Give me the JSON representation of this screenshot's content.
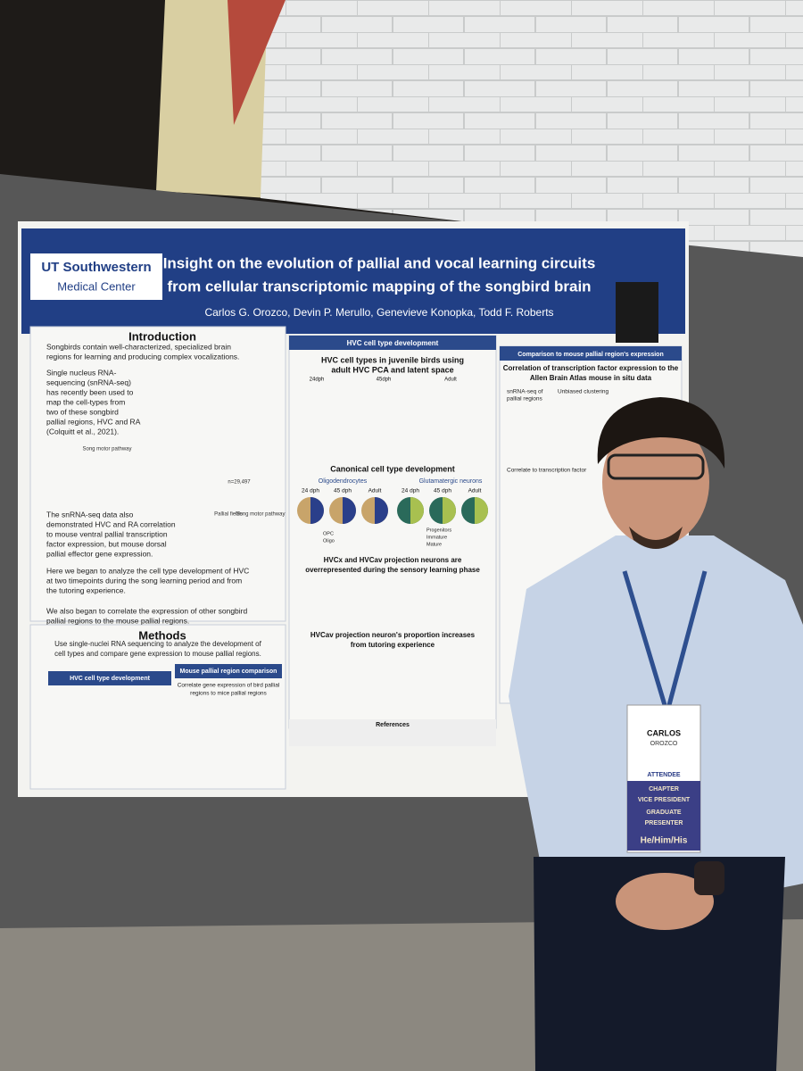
{
  "poster": {
    "logo": {
      "name": "UT Southwestern",
      "sub": "Medical Center"
    },
    "title_lines": [
      "Insight on the evolution of pallial and vocal learning circuits",
      "from cellular transcriptomic mapping of the songbird brain"
    ],
    "authors": "Carlos G. Orozco, Devin P. Merullo, Genevieve Konopka, Todd F. Roberts",
    "introduction": {
      "heading": "Introduction",
      "bullets": [
        [
          "Songbirds contain well-characterized, specialized brain",
          "regions for learning and producing complex vocalizations."
        ],
        [
          "Single nucleus RNA-",
          "sequencing (snRNA-seq)",
          "has recently been used to",
          "map the cell-types from",
          "two of these songbird",
          "pallial regions, HVC and RA",
          "(Colquitt et al., 2021)."
        ],
        [
          "The snRNA-seq data also",
          "demonstrated HVC and RA correlation",
          "to mouse ventral pallial transcription",
          "factor expression, but mouse dorsal",
          "pallial effector gene expression."
        ],
        [
          "Here we began to analyze the cell type development of HVC",
          "at two timepoints during the song learning period and from",
          "the tutoring experience."
        ],
        [
          "We also began to correlate the expression of other songbird",
          "pallial regions to the mouse pallial regions."
        ]
      ],
      "figure_labels": [
        "Song motor pathway",
        "n=29,497",
        "Pallial fields",
        "Song motor pathway"
      ]
    },
    "methods": {
      "heading": "Methods",
      "lines": [
        "Use single-nuclei RNA sequencing to analyze the development of",
        "cell types and compare gene expression to mouse pallial regions."
      ],
      "panels": [
        "HVC cell type development",
        "Mouse pallial region comparison"
      ],
      "panel_text": [
        "Correlate gene expression of bird pallial",
        "regions to mice pallial regions"
      ]
    },
    "middle": {
      "heading": "HVC cell type development",
      "subheading_lines": [
        "HVC cell types in juvenile birds using",
        "adult HVC PCA and latent space"
      ],
      "timepoints": [
        "24dph",
        "45dph",
        "Adult"
      ],
      "canonical": "Canonical cell type development",
      "groups": [
        "Oligodendrocytes",
        "Glutamatergic neurons"
      ],
      "pie_labels": [
        "24 dph",
        "45 dph",
        "Adult"
      ],
      "legend_oligo": [
        "OPC",
        "Oligo"
      ],
      "legend_glut": [
        "Progenitors",
        "Immature",
        "Mature"
      ],
      "finding1": [
        "HVCx and HVCav projection neurons are",
        "overrepresented during the sensory learning phase"
      ],
      "finding2": [
        "HVCav projection neuron's proportion increases",
        "from tutoring experience"
      ],
      "references": "References"
    },
    "right": {
      "heading": "Comparison to mouse pallial region's expression",
      "subheading_lines": [
        "Correlation of transcription factor expression to the",
        "Allen Brain Atlas mouse in situ data"
      ],
      "labels": [
        "snRNA-seq of",
        "pallial regions",
        "Unbiased clustering",
        "Correlate to transcription factor"
      ]
    }
  },
  "badge": {
    "first": "CARLOS",
    "last": "OROZCO",
    "role": "ATTENDEE",
    "ribbons": [
      "CHAPTER",
      "VICE PRESIDENT",
      "GRADUATE",
      "PRESENTER",
      "He/Him/His"
    ]
  }
}
